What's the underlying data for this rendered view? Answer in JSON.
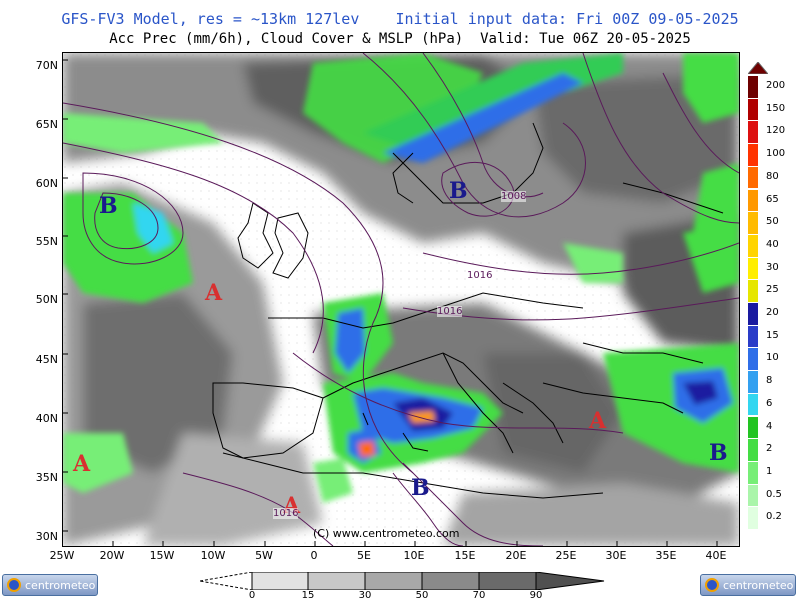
{
  "header": {
    "line1": "GFS-FV3 Model, res = ~13km 127lev    Initial input data: Fri 00Z 09-05-2025",
    "line2": "Acc Prec (mm/6h), Cloud Cover & MSLP (hPa)  Valid: Tue 06Z 20-05-2025"
  },
  "axes": {
    "lat_labels": [
      "70N",
      "65N",
      "60N",
      "55N",
      "50N",
      "45N",
      "40N",
      "35N",
      "30N"
    ],
    "lon_labels": [
      "25W",
      "20W",
      "15W",
      "10W",
      "5W",
      "0",
      "5E",
      "10E",
      "15E",
      "20E",
      "25E",
      "30E",
      "35E",
      "40E"
    ]
  },
  "precip_legend": {
    "labels": [
      "200",
      "150",
      "120",
      "100",
      "80",
      "65",
      "50",
      "40",
      "30",
      "25",
      "20",
      "15",
      "10",
      "8",
      "6",
      "4",
      "2",
      "1",
      "0.5",
      "0.2"
    ],
    "colors": [
      "#6e0000",
      "#b00000",
      "#dd1010",
      "#ff3300",
      "#ff6a00",
      "#ff9900",
      "#ffbb00",
      "#ffd400",
      "#ffee00",
      "#e6e600",
      "#1a1aa0",
      "#2a3cc8",
      "#2f6ee8",
      "#33a0f0",
      "#33d6f0",
      "#22c422",
      "#44dd44",
      "#77ee77",
      "#aaf5aa",
      "#e0ffe0"
    ]
  },
  "cloud_legend": {
    "labels": [
      "0",
      "15",
      "30",
      "50",
      "70",
      "90"
    ]
  },
  "pressure_centers": [
    {
      "label": "B",
      "type": "low",
      "color": "#1a1a8c"
    },
    {
      "label": "B",
      "type": "low",
      "color": "#1a1a8c"
    },
    {
      "label": "B",
      "type": "low",
      "color": "#1a1a8c"
    },
    {
      "label": "B",
      "type": "low",
      "color": "#1a1a8c"
    },
    {
      "label": "A",
      "type": "high",
      "color": "#d83030"
    },
    {
      "label": "A",
      "type": "high",
      "color": "#d83030"
    },
    {
      "label": "A",
      "type": "high",
      "color": "#d83030"
    },
    {
      "label": "A",
      "type": "high",
      "color": "#d83030"
    }
  ],
  "isobar_labels": [
    "1008",
    "1016",
    "1016",
    "1016"
  ],
  "copyright": "(C) www.centrometeo.com",
  "logos": {
    "left": "centrometeo",
    "right": "centrometeo"
  }
}
